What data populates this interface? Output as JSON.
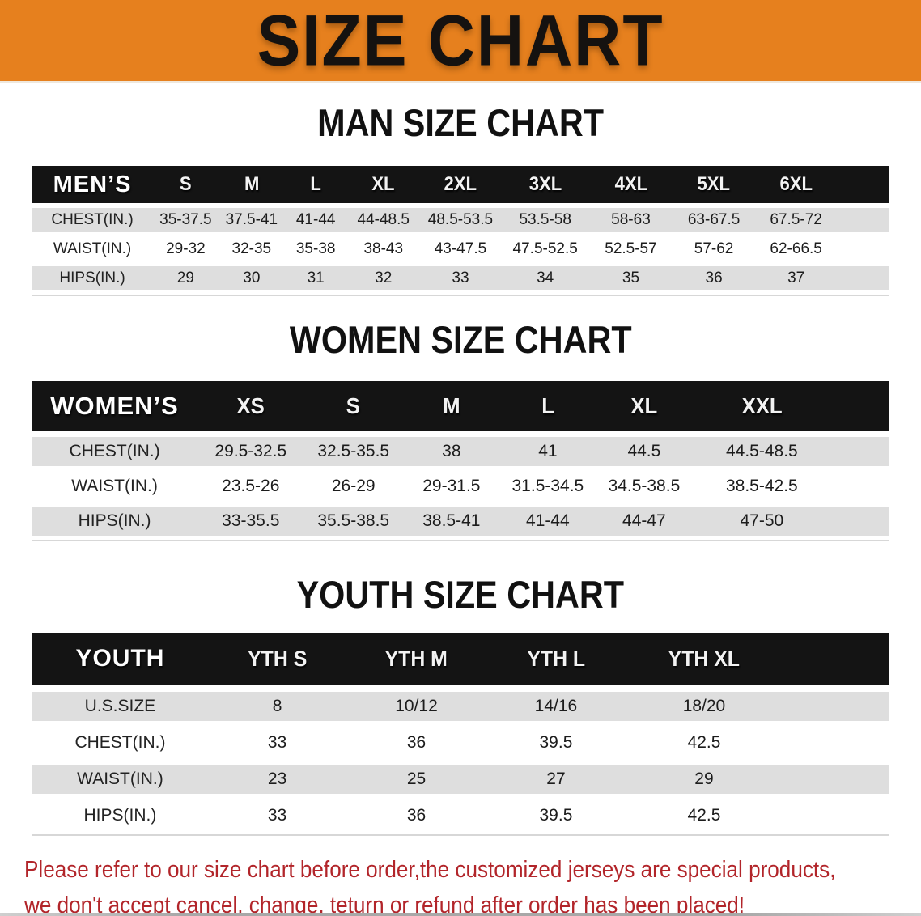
{
  "banner": {
    "title": "SIZE CHART"
  },
  "sections": [
    {
      "id": "men",
      "title": "MAN SIZE CHART",
      "header_label": "MEN’S",
      "columns": [
        "S",
        "M",
        "L",
        "XL",
        "2XL",
        "3XL",
        "4XL",
        "5XL",
        "6XL"
      ],
      "rows": [
        {
          "label": "CHEST(IN.)",
          "values": [
            "35-37.5",
            "37.5-41",
            "41-44",
            "44-48.5",
            "48.5-53.5",
            "53.5-58",
            "58-63",
            "63-67.5",
            "67.5-72"
          ]
        },
        {
          "label": "WAIST(IN.)",
          "values": [
            "29-32",
            "32-35",
            "35-38",
            "38-43",
            "43-47.5",
            "47.5-52.5",
            "52.5-57",
            "57-62",
            "62-66.5"
          ]
        },
        {
          "label": "HIPS(IN.)",
          "values": [
            "29",
            "30",
            "31",
            "32",
            "33",
            "34",
            "35",
            "36",
            "37"
          ]
        }
      ]
    },
    {
      "id": "women",
      "title": "WOMEN SIZE CHART",
      "header_label": "WOMEN’S",
      "columns": [
        "XS",
        "S",
        "M",
        "L",
        "XL",
        "XXL"
      ],
      "rows": [
        {
          "label": "CHEST(IN.)",
          "values": [
            "29.5-32.5",
            "32.5-35.5",
            "38",
            "41",
            "44.5",
            "44.5-48.5"
          ]
        },
        {
          "label": "WAIST(IN.)",
          "values": [
            "23.5-26",
            "26-29",
            "29-31.5",
            "31.5-34.5",
            "34.5-38.5",
            "38.5-42.5"
          ]
        },
        {
          "label": "HIPS(IN.)",
          "values": [
            "33-35.5",
            "35.5-38.5",
            "38.5-41",
            "41-44",
            "44-47",
            "47-50"
          ]
        }
      ]
    },
    {
      "id": "youth",
      "title": "YOUTH SIZE CHART",
      "header_label": "YOUTH",
      "columns": [
        "YTH S",
        "YTH M",
        "YTH L",
        "YTH XL"
      ],
      "rows": [
        {
          "label": "U.S.SIZE",
          "values": [
            "8",
            "10/12",
            "14/16",
            "18/20"
          ]
        },
        {
          "label": "CHEST(IN.)",
          "values": [
            "33",
            "36",
            "39.5",
            "42.5"
          ]
        },
        {
          "label": "WAIST(IN.)",
          "values": [
            "23",
            "25",
            "27",
            "29"
          ]
        },
        {
          "label": "HIPS(IN.)",
          "values": [
            "33",
            "36",
            "39.5",
            "42.5"
          ]
        }
      ]
    }
  ],
  "disclaimer": {
    "line1": "Please refer to our size chart before order,the customized jerseys are special products,",
    "line2": "we don't accept cancel, change, teturn or refund after order has been placed!"
  },
  "colors": {
    "banner_bg": "#e6801e",
    "band_bg": "#141414",
    "row_alt_bg": "#dedede",
    "disclaimer_red": "#b2252a"
  }
}
